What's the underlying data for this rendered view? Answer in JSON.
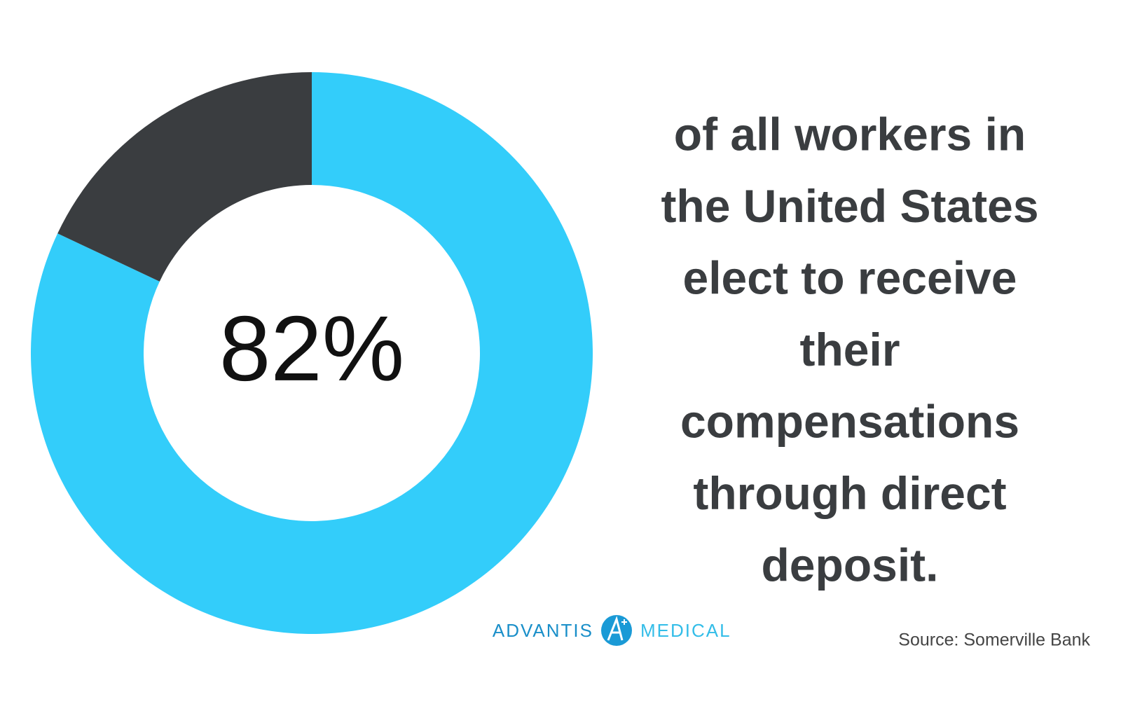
{
  "chart_data": {
    "type": "donut",
    "values": [
      82,
      18
    ],
    "value_labels": [
      "82%",
      null
    ],
    "colors": [
      "#33cdfa",
      "#3a3d40"
    ],
    "description_lines": [
      "of all workers in",
      "the United States",
      "elect to receive",
      "their",
      "compensations",
      "through direct",
      "deposit."
    ],
    "source": "Source: Somerville Bank"
  },
  "logo": {
    "left": "ADVANTIS",
    "right": "MEDICAL"
  }
}
